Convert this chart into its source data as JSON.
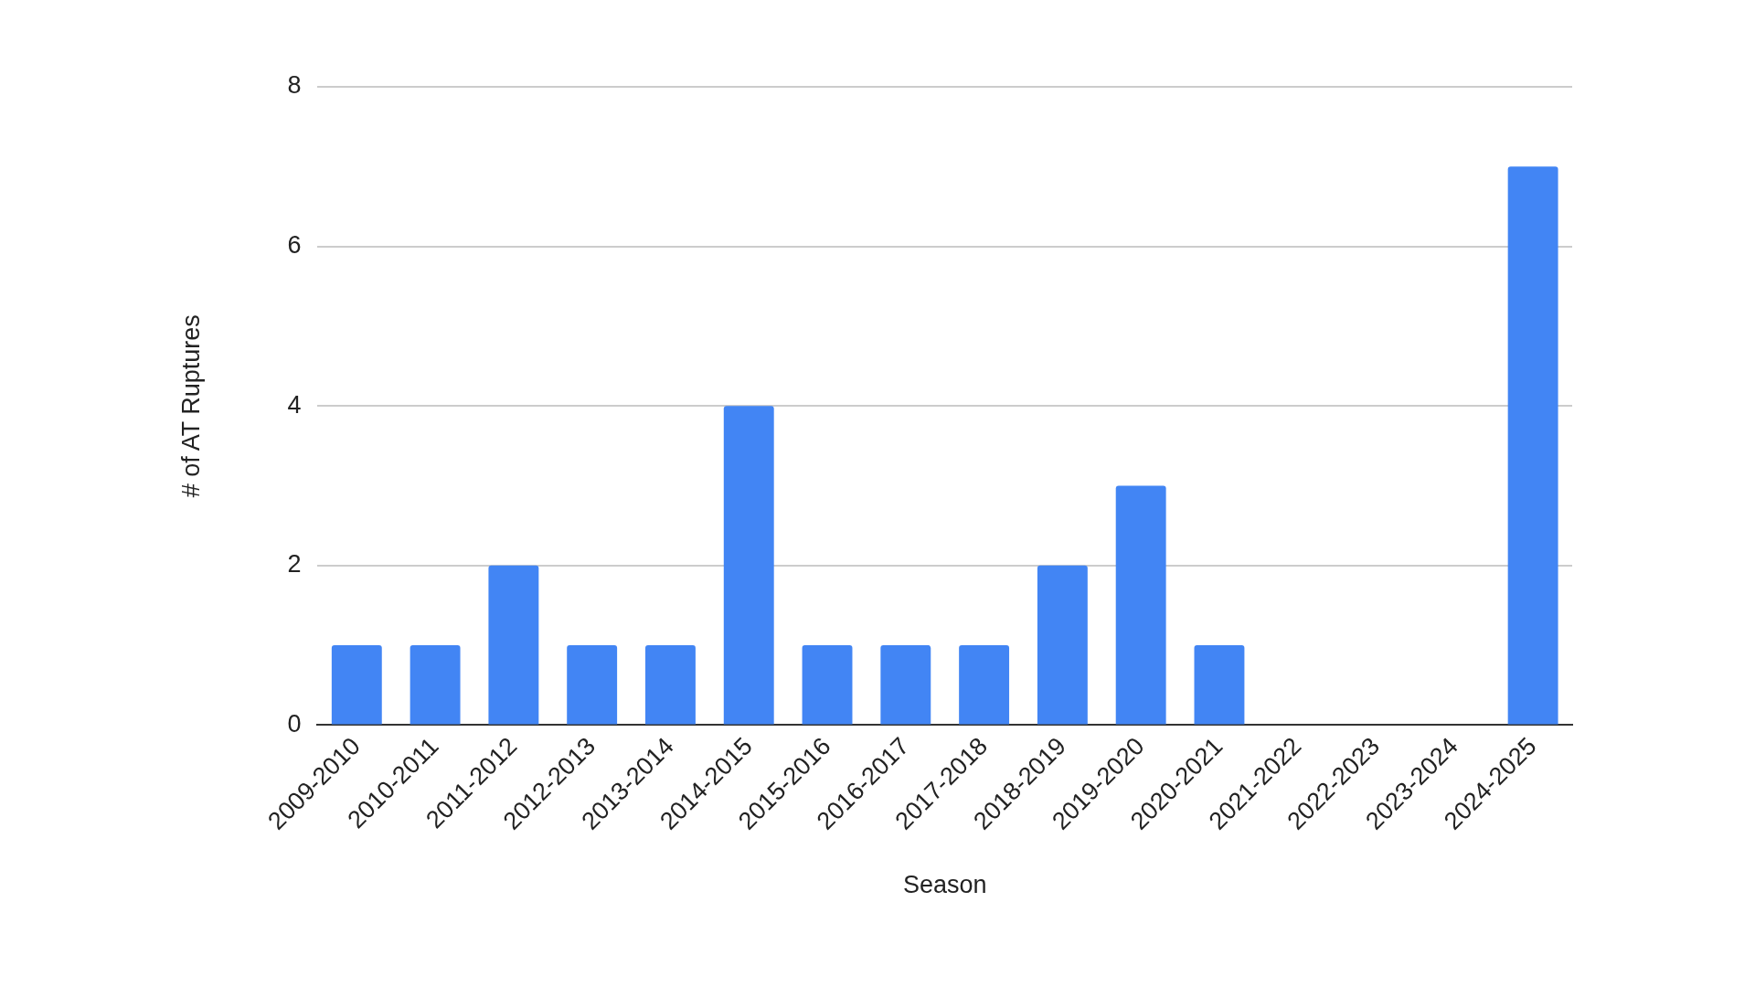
{
  "chart_data": {
    "type": "bar",
    "xlabel": "Season",
    "ylabel": "# of AT Ruptures",
    "categories": [
      "2009-2010",
      "2010-2011",
      "2011-2012",
      "2012-2013",
      "2013-2014",
      "2014-2015",
      "2015-2016",
      "2016-2017",
      "2017-2018",
      "2018-2019",
      "2019-2020",
      "2020-2021",
      "2021-2022",
      "2022-2023",
      "2023-2024",
      "2024-2025"
    ],
    "values": [
      1,
      1,
      2,
      1,
      1,
      4,
      1,
      1,
      1,
      2,
      3,
      1,
      0,
      0,
      0,
      7
    ],
    "color": "#4285f4",
    "ylim": [
      0,
      8
    ],
    "yticks": [
      0,
      2,
      4,
      6,
      8
    ],
    "grid": "y",
    "legend": false
  }
}
